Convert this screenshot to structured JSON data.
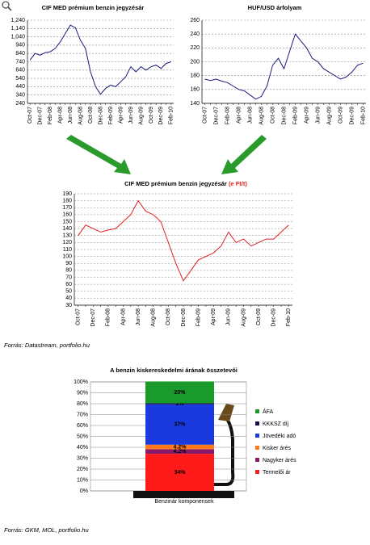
{
  "chart_data": [
    {
      "type": "line",
      "title": "CIF MED prémium benzin jegyzésár",
      "categories": [
        "Oct-07",
        null,
        "Dec-07",
        null,
        "Feb-08",
        null,
        "Apr-08",
        null,
        "Jun-08",
        null,
        "Aug-08",
        null,
        "Oct-08",
        null,
        "Dec-08",
        null,
        "Feb-09",
        null,
        "Apr-09",
        null,
        "Jun-09",
        null,
        "Aug-09",
        null,
        "Oct-09",
        null,
        "Dec-09",
        null,
        "Feb-10"
      ],
      "values": [
        760,
        840,
        820,
        850,
        860,
        900,
        980,
        1080,
        1180,
        1150,
        1000,
        900,
        620,
        440,
        350,
        420,
        460,
        440,
        500,
        560,
        680,
        620,
        680,
        640,
        680,
        700,
        660,
        720,
        740
      ],
      "color": "#1a1a7a",
      "ylim": [
        240,
        1240
      ],
      "yticks": [
        240,
        340,
        440,
        540,
        640,
        740,
        840,
        940,
        {
          "value": 1040,
          "label": "1,040"
        },
        {
          "value": 1140,
          "label": "1,140"
        },
        {
          "value": 1240,
          "label": "1,240"
        }
      ],
      "grid": true
    },
    {
      "type": "line",
      "title": "HUF/USD árfolyam",
      "categories": [
        "Oct-07",
        null,
        "Dec-07",
        null,
        "Feb-08",
        null,
        "Apr-08",
        null,
        "Jun-08",
        null,
        "Aug-08",
        null,
        "Oct-08",
        null,
        "Dec-08",
        null,
        "Feb-09",
        null,
        "Apr-09",
        null,
        "Jun-09",
        null,
        "Aug-09",
        null,
        "Oct-09",
        null,
        "Dec-09",
        null,
        "Feb-10"
      ],
      "values": [
        175,
        173,
        175,
        172,
        170,
        165,
        160,
        158,
        152,
        146,
        150,
        165,
        195,
        205,
        190,
        215,
        240,
        230,
        220,
        205,
        200,
        190,
        185,
        180,
        175,
        178,
        185,
        195,
        198
      ],
      "color": "#1a1a7a",
      "ylim": [
        140,
        260
      ],
      "yticks": [
        140,
        160,
        180,
        200,
        220,
        240,
        260
      ],
      "grid": true
    },
    {
      "type": "line",
      "title": "CIF MED prémium benzin jegyzésár",
      "unit_label": "(e Ft/t)",
      "unit_color": "#e02020",
      "categories": [
        "Oct-07",
        null,
        "Dec-07",
        null,
        "Feb-08",
        null,
        "Apr-08",
        null,
        "Jun-08",
        null,
        "Aug-08",
        null,
        "Oct-08",
        null,
        "Dec-08",
        null,
        "Feb-09",
        null,
        "Apr-09",
        null,
        "Jun-09",
        null,
        "Aug-09",
        null,
        "Oct-09",
        null,
        "Dec-09",
        null,
        "Feb-10"
      ],
      "values": [
        130,
        145,
        140,
        135,
        138,
        140,
        150,
        160,
        180,
        165,
        160,
        150,
        120,
        90,
        65,
        80,
        95,
        100,
        105,
        115,
        135,
        120,
        125,
        115,
        120,
        125,
        125,
        135,
        145
      ],
      "color": "#e02020",
      "ylim": [
        30,
        190
      ],
      "yticks": [
        30,
        40,
        50,
        60,
        70,
        80,
        90,
        100,
        110,
        120,
        130,
        140,
        150,
        160,
        170,
        180,
        190
      ],
      "grid": true,
      "source": "Forrás: Datastream, portfolio.hu"
    },
    {
      "type": "stacked_bar",
      "title": "A benzin kiskereskedelmi árának összetevői",
      "categories": [
        "Benzinár komponensek"
      ],
      "series": [
        {
          "name": "Termelői ár",
          "color": "#ff1a1a",
          "values": [
            34
          ],
          "value_labels": [
            "34%"
          ]
        },
        {
          "name": "Nagyker árés",
          "color": "#8b1a6b",
          "values": [
            4.2
          ],
          "value_labels": [
            "4.2%"
          ]
        },
        {
          "name": "Kisker árés",
          "color": "#ff7a1a",
          "values": [
            4.2
          ],
          "value_labels": [
            "4.2%"
          ]
        },
        {
          "name": "Jövedéki adó",
          "color": "#1a3ae0",
          "values": [
            37
          ],
          "value_labels": [
            "37%"
          ]
        },
        {
          "name": "KKKSZ díj",
          "color": "#10104a",
          "values": [
            1
          ],
          "value_labels": [
            "1%"
          ]
        },
        {
          "name": "ÁFA",
          "color": "#1a9a2a",
          "values": [
            20
          ],
          "value_labels": [
            "20%"
          ]
        }
      ],
      "ylim": [
        0,
        100
      ],
      "yticks": [
        {
          "value": 0,
          "label": "0%"
        },
        {
          "value": 10,
          "label": "10%"
        },
        {
          "value": 20,
          "label": "20%"
        },
        {
          "value": 30,
          "label": "30%"
        },
        {
          "value": 40,
          "label": "40%"
        },
        {
          "value": 50,
          "label": "50%"
        },
        {
          "value": 60,
          "label": "60%"
        },
        {
          "value": 70,
          "label": "70%"
        },
        {
          "value": 80,
          "label": "80%"
        },
        {
          "value": 90,
          "label": "90%"
        },
        {
          "value": 100,
          "label": "100%"
        }
      ],
      "source": "Forrás: GKM, MOL, portfolio.hu"
    }
  ]
}
